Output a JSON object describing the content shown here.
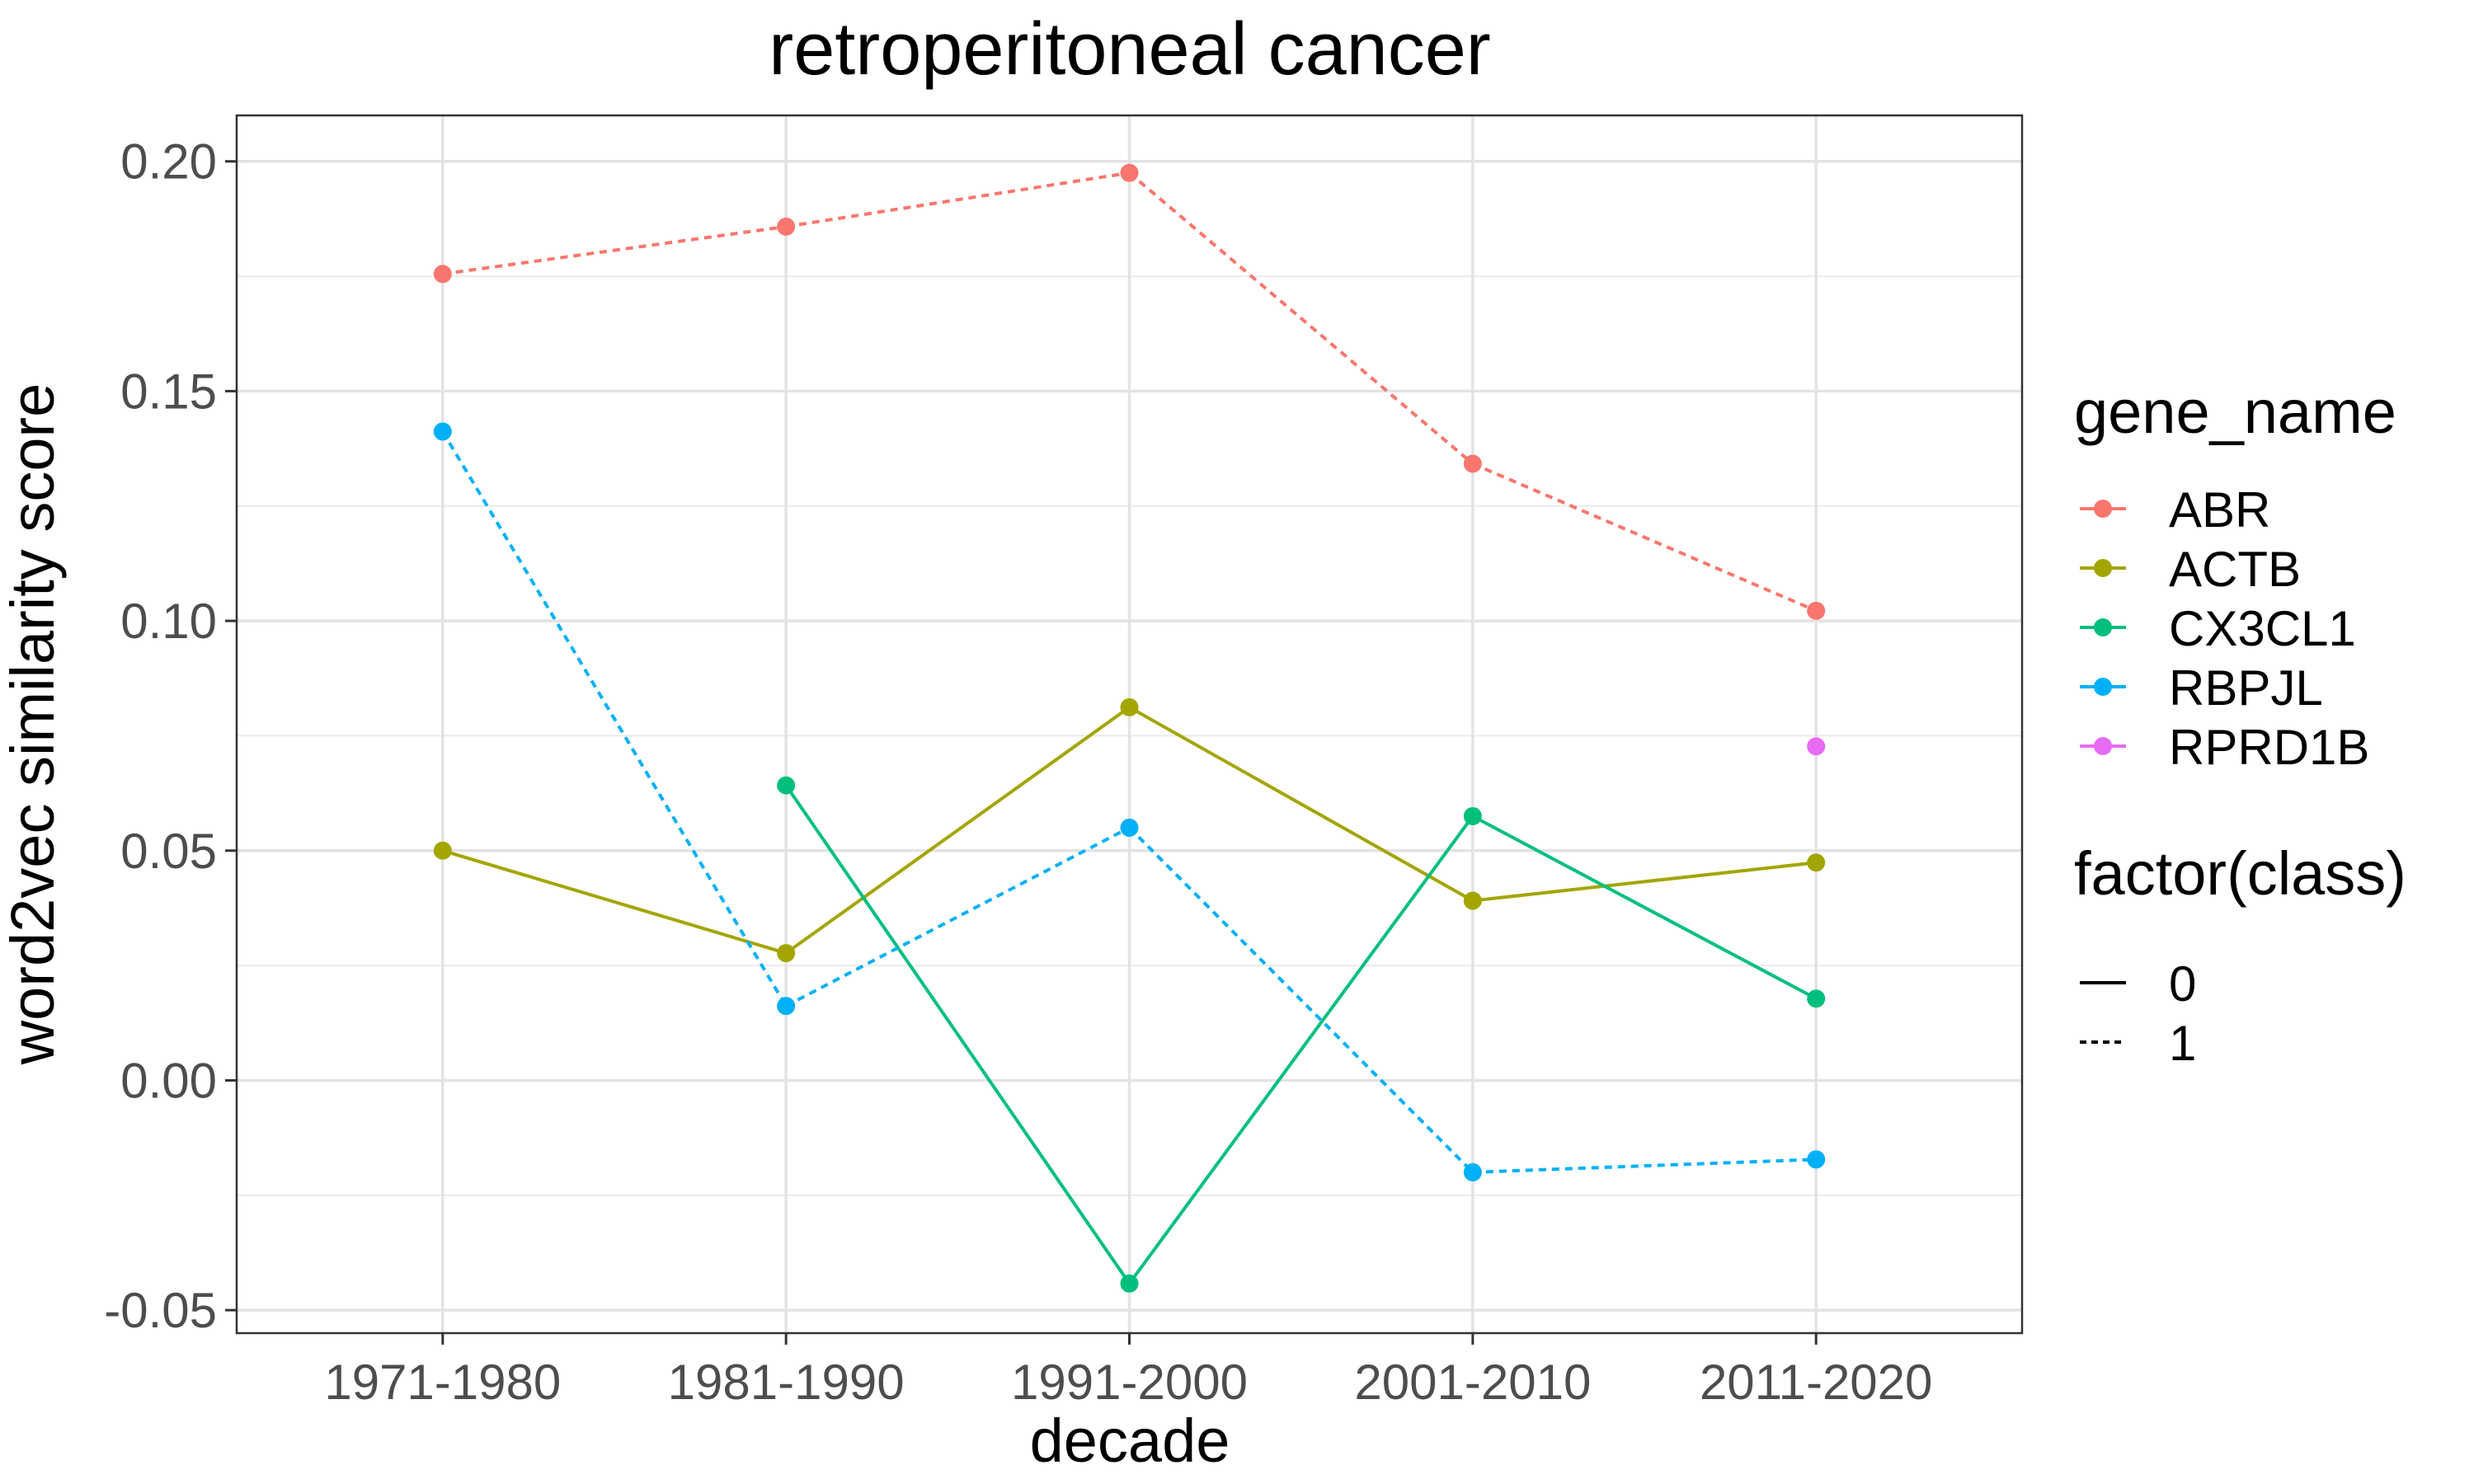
{
  "chart_data": {
    "type": "line",
    "title": "retroperitoneal cancer",
    "xlabel": "decade",
    "ylabel": "word2vec similarity score",
    "categories": [
      "1971-1980",
      "1981-1990",
      "1991-2000",
      "2001-2010",
      "2011-2020"
    ],
    "ylim": [
      -0.055,
      0.21
    ],
    "yticks": [
      -0.05,
      0.0,
      0.05,
      0.1,
      0.15,
      0.2
    ],
    "ytick_labels": [
      "-0.05",
      "0.00",
      "0.05",
      "0.10",
      "0.15",
      "0.20"
    ],
    "grid": true,
    "legend_position": "right",
    "series": [
      {
        "name": "ABR",
        "color": "#F8766D",
        "class": "1",
        "values": [
          0.1755,
          0.1858,
          0.1975,
          0.1342,
          0.1022
        ]
      },
      {
        "name": "ACTB",
        "color": "#A3A500",
        "class": "0",
        "values": [
          0.05,
          0.0277,
          0.0812,
          0.0391,
          0.0474
        ]
      },
      {
        "name": "CX3CL1",
        "color": "#00BF7D",
        "class": "0",
        "values": [
          null,
          0.0642,
          -0.0442,
          0.0575,
          0.0178
        ]
      },
      {
        "name": "RBPJL",
        "color": "#00B0F6",
        "class": "1",
        "values": [
          0.1412,
          0.0162,
          0.055,
          -0.02,
          -0.0172
        ]
      },
      {
        "name": "RPRD1B",
        "color": "#E76BF3",
        "class": "1",
        "values": [
          null,
          null,
          null,
          null,
          0.0727
        ]
      }
    ],
    "legend": {
      "color_title": "gene_name",
      "linetype_title": "factor(class)",
      "linetype_entries": [
        {
          "label": "0",
          "dash": "solid"
        },
        {
          "label": "1",
          "dash": "dotted"
        }
      ]
    }
  }
}
